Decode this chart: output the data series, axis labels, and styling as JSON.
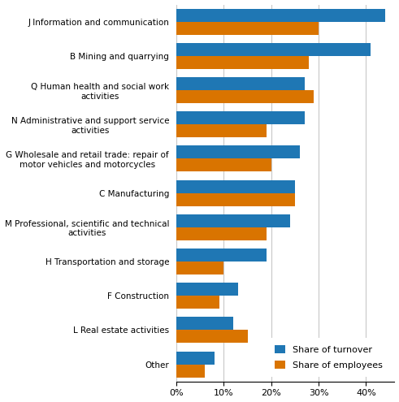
{
  "categories": [
    "J Information and communication",
    "B Mining and quarrying",
    "Q Human health and social work\nactivities",
    "N Administrative and support service\nactivities",
    "G Wholesale and retail trade: repair of\nmotor vehicles and motorcycles",
    "C Manufacturing",
    "M Professional, scientific and technical\nactivities",
    "H Transportation and storage",
    "F Construction",
    "L Real estate activities",
    "Other"
  ],
  "turnover": [
    44,
    41,
    27,
    27,
    26,
    25,
    24,
    19,
    13,
    12,
    8
  ],
  "employees": [
    30,
    28,
    29,
    19,
    20,
    25,
    19,
    10,
    9,
    15,
    6
  ],
  "color_turnover": "#1f77b4",
  "color_employees": "#d97400",
  "legend_labels": [
    "Share of turnover",
    "Share of employees"
  ],
  "xlim": [
    0,
    46
  ],
  "xtick_values": [
    0,
    10,
    20,
    30,
    40
  ],
  "xtick_labels": [
    "0%",
    "10%",
    "20%",
    "30%",
    "40%"
  ],
  "bar_height": 0.38,
  "grid_color": "#c8c8c8",
  "figsize": [
    4.91,
    4.95
  ],
  "dpi": 100,
  "ylabel_fontsize": 7.5,
  "xlabel_fontsize": 8,
  "legend_fontsize": 8
}
